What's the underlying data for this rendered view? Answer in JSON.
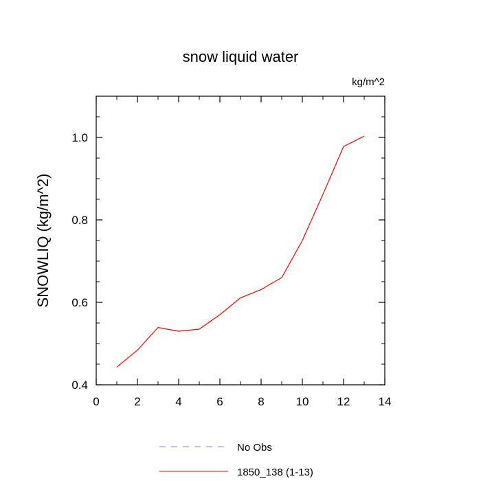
{
  "chart_data": {
    "type": "line",
    "title": "snow liquid water",
    "units_label": "kg/m^2",
    "xlabel": "",
    "ylabel": "SNOWLIQ  (kg/m^2)",
    "xlim": [
      0,
      14
    ],
    "ylim": [
      0.4,
      1.1
    ],
    "x_ticks": [
      0,
      2,
      4,
      6,
      8,
      10,
      12,
      14
    ],
    "y_ticks": [
      0.4,
      0.6,
      0.8,
      1.0
    ],
    "x_tick_labels": [
      "0",
      "2",
      "4",
      "6",
      "8",
      "10",
      "12",
      "14"
    ],
    "y_tick_labels": [
      "0.4",
      "0.6",
      "0.8",
      "1.0"
    ],
    "grid": false,
    "legend_position": "bottom",
    "series": [
      {
        "name": "1850_138 (1-13)",
        "color": "#ff0000",
        "style": "solid",
        "x": [
          1,
          2,
          3,
          4,
          5,
          6,
          7,
          8,
          9,
          10,
          11,
          12,
          13
        ],
        "y": [
          0.443,
          0.484,
          0.539,
          0.53,
          0.535,
          0.57,
          0.611,
          0.631,
          0.66,
          0.75,
          0.862,
          0.978,
          1.003
        ]
      }
    ],
    "legend": [
      {
        "label": "No Obs",
        "color": "#8080ff",
        "style": "dashed"
      },
      {
        "label": "1850_138 (1-13)",
        "color": "#ff0000",
        "style": "solid"
      }
    ]
  }
}
